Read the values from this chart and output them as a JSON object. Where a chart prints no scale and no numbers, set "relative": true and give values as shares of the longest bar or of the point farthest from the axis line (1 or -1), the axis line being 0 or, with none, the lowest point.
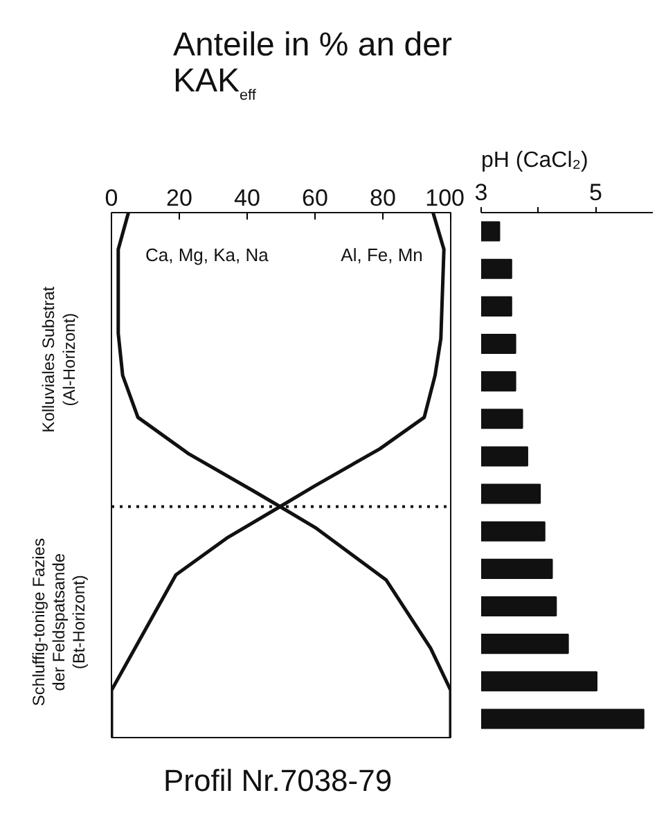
{
  "chart_data": [
    {
      "type": "line",
      "title": "Anteile in % an der\nKAK$_{eff}$",
      "relative": true,
      "xlim": [
        0,
        100
      ],
      "xticks": [
        0,
        20,
        40,
        60,
        80,
        100
      ],
      "grid": false,
      "line_style": "solid",
      "marker": "none",
      "series": [
        {
          "name": "Ca, Mg, Ka, Na",
          "color": "#111111",
          "x": [
            5.0,
            2.0,
            2.0,
            3.3,
            7.8,
            22.9,
            41.8,
            49.7,
            60.1,
            81.0,
            94.1,
            100,
            100
          ],
          "values": [
            0,
            -0.07,
            -0.23,
            -0.31,
            -0.39,
            -0.46,
            -0.53,
            -0.56,
            -0.6,
            -0.7,
            -0.83,
            -0.91,
            -1.0
          ]
        },
        {
          "name": "Al, Fe, Mn",
          "color": "#111111",
          "x": [
            94.8,
            98.0,
            97.1,
            95.4,
            92.2,
            79.1,
            60.1,
            49.7,
            34.0,
            19.0,
            0,
            0
          ],
          "values": [
            0,
            -0.07,
            -0.24,
            -0.31,
            -0.39,
            -0.45,
            -0.52,
            -0.56,
            -0.62,
            -0.69,
            -0.91,
            -1.0
          ]
        }
      ],
      "ref_lines": [
        {
          "axis": "y",
          "value": -0.56,
          "line_style": "dotted",
          "color": "#111111"
        }
      ],
      "annotations": [
        "Kolluviales Substrat\n(Al-Horizont)",
        "Schluffig-tonige Fazies\nder Feldspatsande\n(Bt-Horizont)",
        "Profil Nr.7038-79"
      ]
    },
    {
      "type": "bar",
      "orientation": "horizontal",
      "title": "pH (CaCl₂)",
      "color": "#111111",
      "xlim": [
        3,
        6
      ],
      "xticks": [
        3,
        {
          "value": 4,
          "label": null
        },
        5
      ],
      "grid": false,
      "categories": [
        null,
        null,
        null,
        null,
        null,
        null,
        null,
        null,
        null,
        null,
        null,
        null,
        null,
        null
      ],
      "values": [
        3.32,
        3.53,
        3.53,
        3.6,
        3.6,
        3.72,
        3.81,
        4.03,
        4.11,
        4.24,
        4.31,
        4.52,
        5.02,
        5.84
      ]
    }
  ]
}
